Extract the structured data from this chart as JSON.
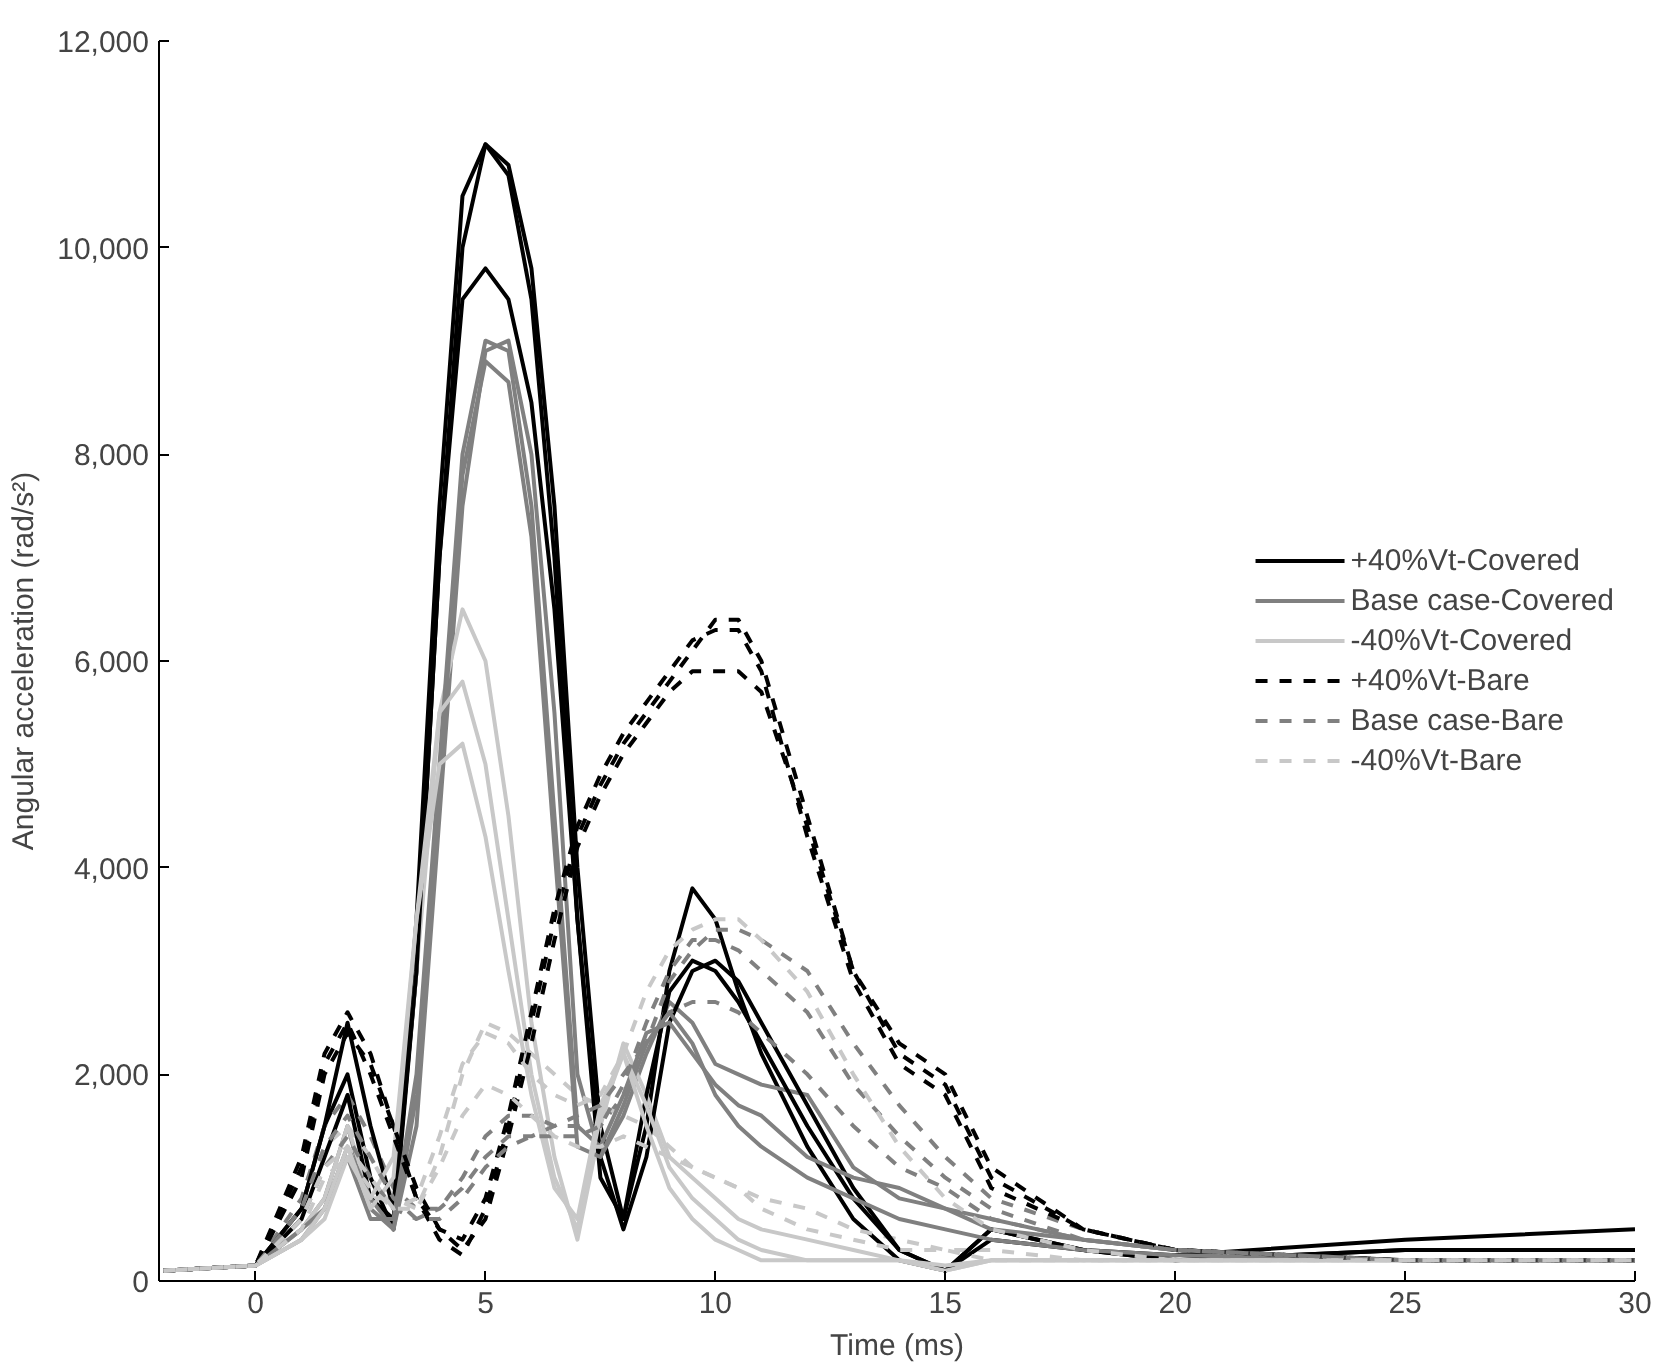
{
  "chart_data": {
    "type": "line",
    "xlabel": "Time (ms)",
    "ylabel": "Angular acceleration (rad/s²)",
    "x": [
      -2,
      0,
      1,
      1.5,
      2,
      2.5,
      3,
      3.5,
      4,
      4.5,
      5,
      5.5,
      6,
      6.5,
      7,
      7.5,
      8,
      8.5,
      9,
      9.5,
      10,
      10.5,
      11,
      12,
      13,
      14,
      15,
      16,
      18,
      20,
      25,
      30
    ],
    "xlim": [
      -2.1,
      30
    ],
    "xticks": [
      0,
      5,
      10,
      15,
      20,
      25,
      30
    ],
    "ylim": [
      0,
      12000
    ],
    "yticks": [
      0,
      {
        "value": 2000,
        "label": "2,000"
      },
      {
        "value": 4000,
        "label": "4,000"
      },
      {
        "value": 6000,
        "label": "6,000"
      },
      {
        "value": 8000,
        "label": "8,000"
      },
      {
        "value": 10000,
        "label": "10,000"
      },
      {
        "value": 12000,
        "label": "12,000"
      }
    ],
    "grid": false,
    "legend": "right",
    "series": [
      {
        "name": "+40%Vt-Covered",
        "color": "#000000",
        "line_style": "solid",
        "values": [
          100,
          150,
          700,
          1500,
          2000,
          1000,
          500,
          3000,
          7000,
          10000,
          11000,
          10800,
          9800,
          7500,
          4000,
          1500,
          600,
          1500,
          3000,
          3800,
          3500,
          2800,
          2200,
          1300,
          600,
          200,
          100,
          500,
          300,
          200,
          300,
          300
        ]
      },
      {
        "name": "Base case-Covered",
        "color": "#808080",
        "line_style": "solid",
        "values": [
          100,
          150,
          500,
          800,
          1500,
          700,
          500,
          1500,
          4500,
          7500,
          9000,
          9100,
          8000,
          5500,
          2000,
          1200,
          1600,
          2200,
          2700,
          2500,
          2100,
          2000,
          1900,
          1800,
          1100,
          800,
          700,
          600,
          400,
          300,
          200,
          200
        ]
      },
      {
        "name": "-40%Vt-Covered",
        "color": "#c8c8c8",
        "line_style": "solid",
        "values": [
          100,
          150,
          500,
          800,
          1500,
          800,
          800,
          3000,
          5500,
          6500,
          6000,
          4500,
          2500,
          1200,
          400,
          1500,
          2300,
          1800,
          1200,
          1000,
          800,
          600,
          500,
          400,
          300,
          200,
          100,
          200,
          200,
          200,
          200,
          200
        ]
      },
      {
        "name": "+40%Vt-Bare",
        "color": "#000000",
        "line_style": "dashed",
        "values": [
          100,
          150,
          1200,
          2200,
          2600,
          2200,
          1500,
          800,
          400,
          250,
          700,
          1500,
          2500,
          3500,
          4300,
          4800,
          5200,
          5500,
          5800,
          6100,
          6400,
          6400,
          6000,
          4500,
          3000,
          2200,
          1900,
          1000,
          500,
          300,
          200,
          200
        ]
      },
      {
        "name": "Base case-Bare",
        "color": "#808080",
        "line_style": "dashed",
        "values": [
          100,
          150,
          800,
          1500,
          1800,
          1400,
          900,
          700,
          700,
          1000,
          1400,
          1600,
          1600,
          1500,
          1500,
          1500,
          1800,
          2300,
          2900,
          3200,
          3400,
          3400,
          3300,
          3000,
          2300,
          1700,
          1200,
          800,
          500,
          300,
          200,
          200
        ]
      },
      {
        "name": "-40%Vt-Bare",
        "color": "#c8c8c8",
        "line_style": "dashed",
        "values": [
          100,
          150,
          700,
          1300,
          1500,
          1200,
          800,
          700,
          1200,
          2000,
          2500,
          2400,
          2200,
          2000,
          1800,
          1700,
          1600,
          1500,
          1300,
          1100,
          1000,
          900,
          800,
          700,
          500,
          400,
          300,
          300,
          200,
          200,
          200,
          200
        ]
      },
      {
        "color": "#000000",
        "line_style": "solid",
        "values": [
          100,
          150,
          600,
          1200,
          1800,
          800,
          600,
          3000,
          7000,
          9500,
          9800,
          9500,
          8500,
          6500,
          3500,
          1200,
          500,
          1200,
          2500,
          3000,
          3100,
          2900,
          2500,
          1700,
          900,
          300,
          100,
          500,
          300,
          200,
          300,
          300
        ]
      },
      {
        "color": "#000000",
        "line_style": "solid",
        "values": [
          100,
          150,
          700,
          1500,
          2500,
          1500,
          700,
          3500,
          7500,
          10500,
          11000,
          10700,
          9500,
          7000,
          3500,
          1000,
          600,
          1800,
          2800,
          3100,
          3000,
          2700,
          2300,
          1500,
          800,
          300,
          100,
          400,
          300,
          250,
          400,
          500
        ]
      },
      {
        "color": "#808080",
        "line_style": "solid",
        "values": [
          100,
          150,
          500,
          700,
          1200,
          600,
          600,
          2000,
          5000,
          8000,
          9100,
          9000,
          7500,
          4500,
          1500,
          1300,
          1800,
          2400,
          2500,
          2200,
          1900,
          1700,
          1600,
          1200,
          1000,
          900,
          700,
          500,
          400,
          300,
          200,
          200
        ]
      },
      {
        "color": "#808080",
        "line_style": "solid",
        "values": [
          100,
          150,
          400,
          700,
          1300,
          800,
          500,
          1800,
          4800,
          7800,
          8900,
          8700,
          7200,
          4200,
          1300,
          1200,
          1700,
          2300,
          2600,
          2300,
          1800,
          1500,
          1300,
          1000,
          800,
          600,
          500,
          400,
          300,
          250,
          200,
          200
        ]
      },
      {
        "color": "#c8c8c8",
        "line_style": "solid",
        "values": [
          100,
          150,
          400,
          700,
          1300,
          700,
          1000,
          3500,
          5500,
          5800,
          5000,
          3500,
          2000,
          1000,
          500,
          1600,
          2200,
          1700,
          1100,
          800,
          600,
          400,
          300,
          200,
          200,
          200,
          100,
          200,
          200,
          200,
          200,
          200
        ]
      },
      {
        "color": "#c8c8c8",
        "line_style": "solid",
        "values": [
          100,
          150,
          400,
          600,
          1200,
          800,
          1200,
          3500,
          5000,
          5200,
          4300,
          3000,
          1800,
          900,
          600,
          1700,
          2200,
          1500,
          900,
          600,
          400,
          300,
          200,
          200,
          200,
          200,
          150,
          200,
          200,
          200,
          200,
          200
        ]
      },
      {
        "color": "#000000",
        "line_style": "dashed",
        "values": [
          100,
          150,
          1000,
          2000,
          2400,
          2100,
          1500,
          900,
          500,
          300,
          600,
          1400,
          2300,
          3300,
          4200,
          4700,
          5100,
          5400,
          5700,
          5900,
          5900,
          5900,
          5700,
          4400,
          3000,
          2300,
          2000,
          1100,
          500,
          300,
          200,
          200
        ]
      },
      {
        "color": "#000000",
        "line_style": "dashed",
        "values": [
          100,
          150,
          1100,
          2100,
          2500,
          2000,
          1400,
          800,
          500,
          400,
          800,
          1600,
          2600,
          3600,
          4400,
          4900,
          5300,
          5600,
          5900,
          6200,
          6300,
          6300,
          5900,
          4300,
          2900,
          2100,
          1800,
          900,
          500,
          300,
          200,
          200
        ]
      },
      {
        "color": "#808080",
        "line_style": "dashed",
        "values": [
          100,
          150,
          700,
          1300,
          1600,
          1200,
          800,
          600,
          600,
          800,
          1100,
          1300,
          1400,
          1400,
          1400,
          1500,
          1900,
          2500,
          3000,
          3300,
          3300,
          3200,
          3000,
          2600,
          1900,
          1400,
          1000,
          700,
          400,
          300,
          200,
          200
        ]
      },
      {
        "color": "#808080",
        "line_style": "dashed",
        "values": [
          100,
          150,
          600,
          1100,
          1400,
          1000,
          700,
          600,
          700,
          900,
          1200,
          1400,
          1400,
          1500,
          1600,
          1700,
          2000,
          2300,
          2600,
          2700,
          2700,
          2600,
          2400,
          2000,
          1500,
          1100,
          900,
          600,
          400,
          300,
          200,
          200
        ]
      },
      {
        "color": "#c8c8c8",
        "line_style": "dashed",
        "values": [
          100,
          150,
          600,
          1100,
          1300,
          1000,
          700,
          800,
          1400,
          2100,
          2400,
          2300,
          2000,
          1800,
          1700,
          1800,
          2200,
          2800,
          3200,
          3400,
          3500,
          3500,
          3300,
          2800,
          2000,
          1300,
          800,
          500,
          300,
          200,
          200,
          200
        ]
      },
      {
        "color": "#c8c8c8",
        "line_style": "dashed",
        "values": [
          100,
          150,
          500,
          1000,
          1200,
          900,
          700,
          700,
          1100,
          1600,
          1900,
          1800,
          1600,
          1400,
          1300,
          1300,
          1400,
          1300,
          1200,
          1100,
          1000,
          900,
          700,
          500,
          400,
          300,
          300,
          200,
          200,
          200,
          200,
          200
        ]
      }
    ]
  }
}
